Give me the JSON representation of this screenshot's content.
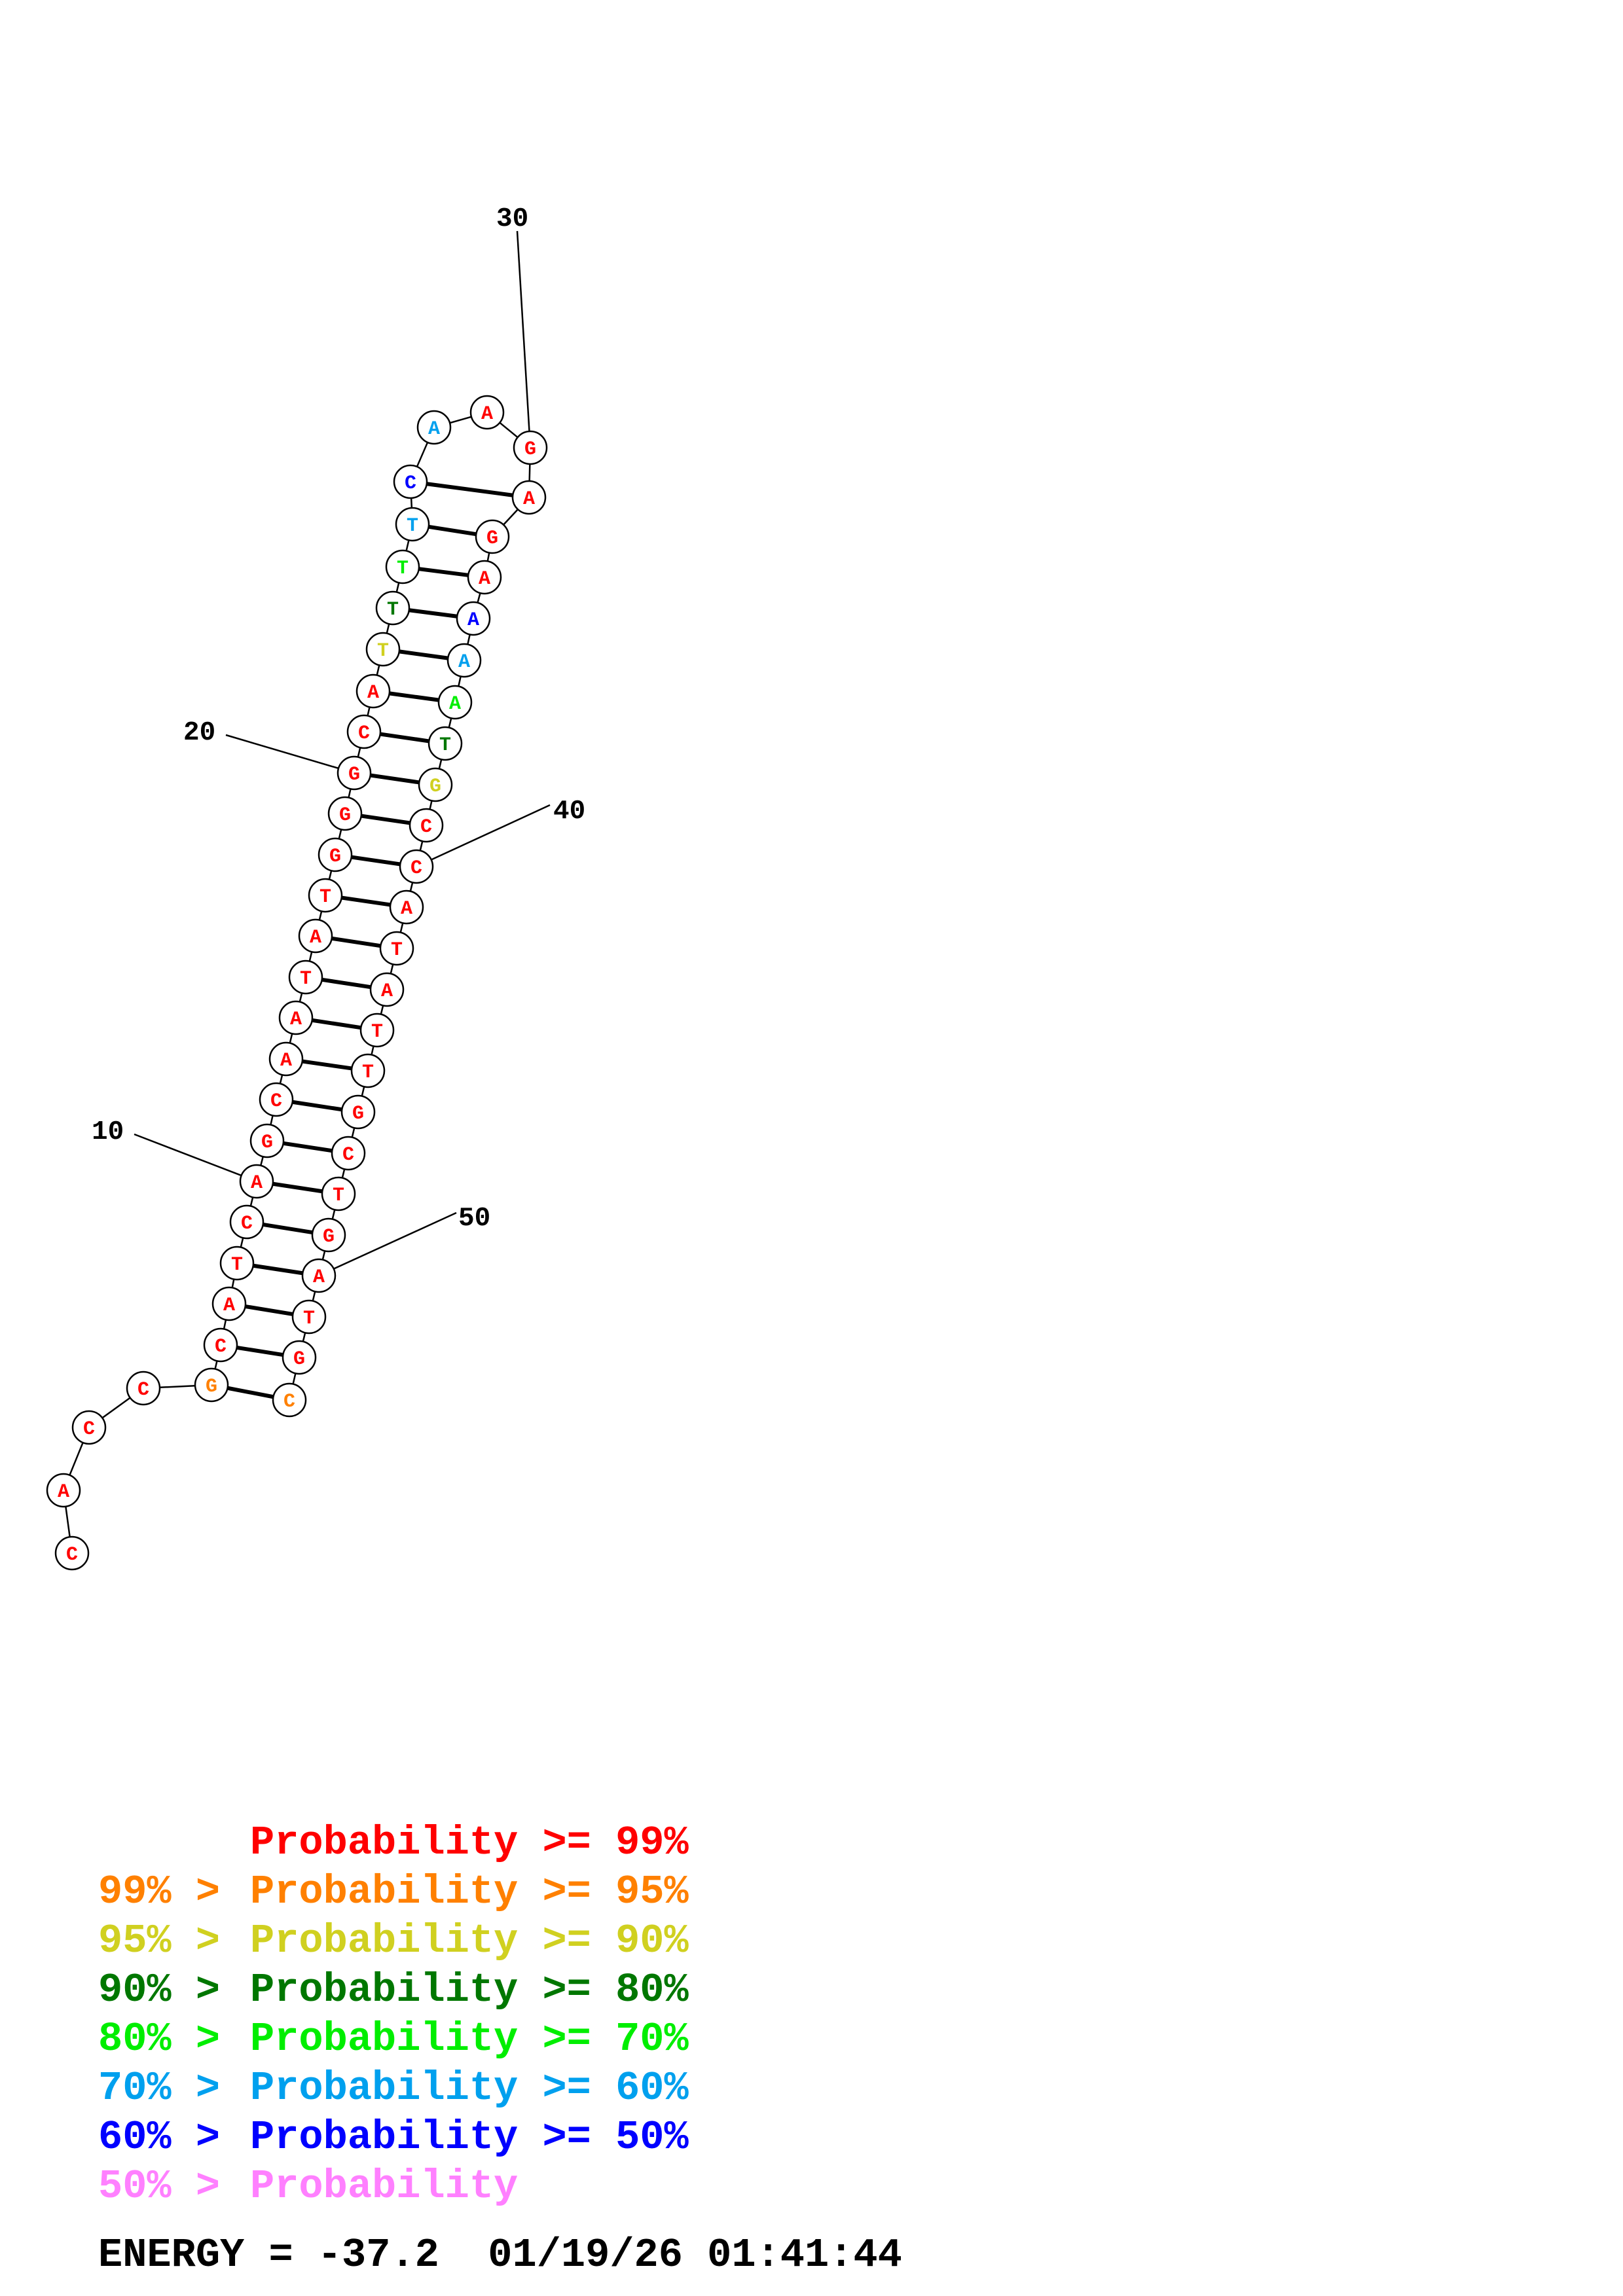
{
  "colors": {
    "p99": "#ff0000",
    "p95": "#ff8000",
    "p90": "#d0d020",
    "p80": "#007700",
    "p70": "#00ee00",
    "p60": "#00a0ee",
    "p50": "#0000ff",
    "plow": "#ff80ff"
  },
  "structure": {
    "sequence": [
      "C",
      "A",
      "C",
      "C",
      "G",
      "C",
      "A",
      "T",
      "C",
      "A",
      "G",
      "C",
      "A",
      "A",
      "T",
      "A",
      "T",
      "G",
      "G",
      "G",
      "C",
      "A",
      "T",
      "T",
      "T",
      "T",
      "C",
      "A",
      "A",
      "G",
      "A",
      "G",
      "A",
      "A",
      "A",
      "A",
      "T",
      "G",
      "C",
      "C",
      "A",
      "T",
      "A",
      "T",
      "T",
      "G",
      "C",
      "T",
      "G",
      "A",
      "T",
      "G",
      "C"
    ],
    "probability_class": [
      "p99",
      "p99",
      "p99",
      "p99",
      "p95",
      "p99",
      "p99",
      "p99",
      "p99",
      "p99",
      "p99",
      "p99",
      "p99",
      "p99",
      "p99",
      "p99",
      "p99",
      "p99",
      "p99",
      "p99",
      "p99",
      "p99",
      "p90",
      "p80",
      "p70",
      "p60",
      "p50",
      "p60",
      "p99",
      "p99",
      "p99",
      "p99",
      "p99",
      "p50",
      "p60",
      "p70",
      "p80",
      "p90",
      "p99",
      "p99",
      "p99",
      "p99",
      "p99",
      "p99",
      "p99",
      "p99",
      "p99",
      "p99",
      "p99",
      "p99",
      "p99",
      "p99",
      "p95"
    ],
    "pairs": [
      [
        5,
        53
      ],
      [
        6,
        52
      ],
      [
        7,
        51
      ],
      [
        8,
        50
      ],
      [
        9,
        49
      ],
      [
        10,
        48
      ],
      [
        11,
        47
      ],
      [
        12,
        46
      ],
      [
        13,
        45
      ],
      [
        14,
        44
      ],
      [
        15,
        43
      ],
      [
        16,
        42
      ],
      [
        17,
        41
      ],
      [
        18,
        40
      ],
      [
        19,
        39
      ],
      [
        20,
        38
      ],
      [
        21,
        37
      ],
      [
        22,
        36
      ],
      [
        23,
        35
      ],
      [
        24,
        34
      ],
      [
        25,
        33
      ],
      [
        26,
        32
      ],
      [
        27,
        31
      ]
    ],
    "tick_labels": [
      {
        "nucleotide": 10,
        "label": "10"
      },
      {
        "nucleotide": 20,
        "label": "20"
      },
      {
        "nucleotide": 30,
        "label": "30"
      },
      {
        "nucleotide": 40,
        "label": "40"
      },
      {
        "nucleotide": 50,
        "label": "50"
      }
    ]
  },
  "legend": [
    {
      "prefix": "",
      "text": "Probability >= 99%",
      "color_key": "p99"
    },
    {
      "prefix": "99% > ",
      "text": "Probability >= 95%",
      "color_key": "p95"
    },
    {
      "prefix": "95% > ",
      "text": "Probability >= 90%",
      "color_key": "p90"
    },
    {
      "prefix": "90% > ",
      "text": "Probability >= 80%",
      "color_key": "p80"
    },
    {
      "prefix": "80% > ",
      "text": "Probability >= 70%",
      "color_key": "p70"
    },
    {
      "prefix": "70% > ",
      "text": "Probability >= 60%",
      "color_key": "p60"
    },
    {
      "prefix": "60% > ",
      "text": "Probability >= 50%",
      "color_key": "p50"
    },
    {
      "prefix": "50% > ",
      "text": "Probability",
      "color_key": "plow"
    }
  ],
  "energy": {
    "text": "ENERGY = -37.2  01/19/26 01:41:44"
  }
}
